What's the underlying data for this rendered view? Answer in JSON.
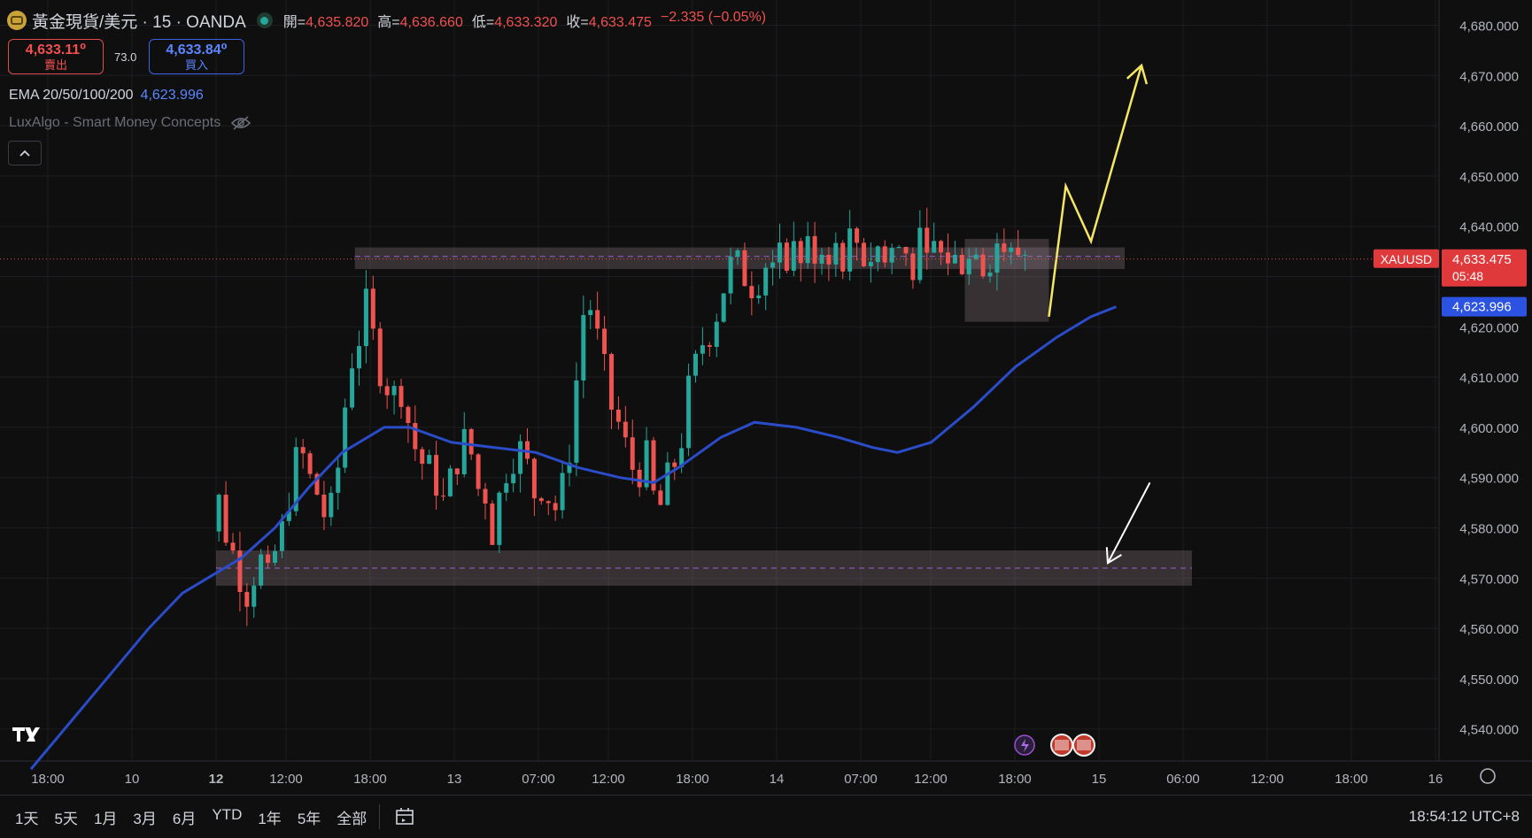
{
  "header": {
    "title": "黃金現貨/美元 · 15 · OANDA",
    "open_label": "開=",
    "open": "4,635.820",
    "high_label": "高=",
    "high": "4,636.660",
    "low_label": "低=",
    "low": "4,633.320",
    "close_label": "收=",
    "close": "4,633.475",
    "change": "−2.335 (−0.05%)"
  },
  "trade": {
    "sell_price": "4,633.11⁰",
    "sell_label": "賣出",
    "spread": "73.0",
    "buy_price": "4,633.84⁰",
    "buy_label": "買入"
  },
  "indicators": {
    "ema_label": "EMA 20/50/100/200",
    "ema_value": "4,623.996",
    "smc_label": "LuxAlgo - Smart Money Concepts"
  },
  "bottom": {
    "ranges": [
      "1天",
      "5天",
      "1月",
      "3月",
      "6月",
      "YTD",
      "1年",
      "5年",
      "全部"
    ],
    "clock": "18:54:12 UTC+8"
  },
  "colors": {
    "up": "#26a69a",
    "down": "#ef5350",
    "ema": "#2b4cc9",
    "bg": "#0f0f0f",
    "projection": "#f5e663",
    "arrow": "#ffffff"
  },
  "chart_data": {
    "type": "candlestick",
    "symbol": "XAUUSD",
    "timeframe": "15",
    "y_ticks": [
      "4,540.000",
      "4,550.000",
      "4,560.000",
      "4,570.000",
      "4,580.000",
      "4,590.000",
      "4,600.000",
      "4,610.000",
      "4,620.000",
      "4,630.000",
      "4,640.000",
      "4,650.000",
      "4,660.000",
      "4,670.000",
      "4,680.000"
    ],
    "x_ticks": [
      "18:00",
      "10",
      "12",
      "12:00",
      "18:00",
      "13",
      "07:00",
      "12:00",
      "18:00",
      "14",
      "07:00",
      "12:00",
      "18:00",
      "15",
      "06:00",
      "12:00",
      "18:00",
      "16"
    ],
    "ylim": [
      4532,
      4685
    ],
    "last_price": 4633.475,
    "last_price_label": "4,633.475",
    "countdown": "05:48",
    "ema_value": 4623.996,
    "ema_label": "4,623.996",
    "ema_path": [
      [
        -22,
        4532
      ],
      [
        -14,
        4548
      ],
      [
        -8,
        4560
      ],
      [
        -4,
        4567
      ],
      [
        0,
        4571
      ],
      [
        3,
        4574
      ],
      [
        7,
        4580
      ],
      [
        11,
        4588
      ],
      [
        15,
        4595
      ],
      [
        20,
        4600
      ],
      [
        23,
        4600
      ],
      [
        28,
        4597
      ],
      [
        33,
        4596
      ],
      [
        38,
        4595
      ],
      [
        43,
        4592
      ],
      [
        48,
        4590
      ],
      [
        52,
        4589
      ],
      [
        55,
        4592
      ],
      [
        60,
        4598
      ],
      [
        64,
        4601
      ],
      [
        69,
        4600
      ],
      [
        74,
        4598
      ],
      [
        78,
        4596
      ],
      [
        81,
        4595
      ],
      [
        85,
        4597
      ],
      [
        90,
        4604
      ],
      [
        95,
        4612
      ],
      [
        100,
        4618
      ],
      [
        104,
        4622
      ],
      [
        107,
        4624
      ]
    ],
    "candles_anchor": [
      [
        -3,
        4535
      ],
      [
        -2,
        4550
      ],
      [
        -1,
        4572
      ],
      [
        0,
        4588
      ],
      [
        1,
        4580
      ],
      [
        2,
        4575
      ],
      [
        3,
        4570
      ],
      [
        4,
        4566
      ],
      [
        5,
        4576
      ],
      [
        6,
        4568
      ],
      [
        7,
        4575
      ],
      [
        8,
        4580
      ],
      [
        9,
        4590
      ],
      [
        10,
        4596
      ],
      [
        11,
        4590
      ],
      [
        12,
        4587
      ],
      [
        13,
        4582
      ],
      [
        14,
        4584
      ],
      [
        15,
        4600
      ],
      [
        16,
        4613
      ],
      [
        17,
        4618
      ],
      [
        18,
        4625
      ],
      [
        19,
        4614
      ],
      [
        20,
        4610
      ],
      [
        21,
        4606
      ],
      [
        22,
        4608
      ],
      [
        23,
        4600
      ],
      [
        24,
        4594
      ],
      [
        25,
        4592
      ],
      [
        26,
        4590
      ],
      [
        27,
        4585
      ],
      [
        28,
        4590
      ],
      [
        29,
        4596
      ],
      [
        30,
        4598
      ],
      [
        31,
        4588
      ],
      [
        32,
        4587
      ],
      [
        33,
        4578
      ],
      [
        34,
        4590
      ],
      [
        35,
        4594
      ],
      [
        36,
        4596
      ],
      [
        37,
        4592
      ],
      [
        38,
        4586
      ],
      [
        39,
        4590
      ],
      [
        40,
        4583
      ],
      [
        41,
        4586
      ],
      [
        42,
        4596
      ],
      [
        43,
        4612
      ],
      [
        44,
        4628
      ],
      [
        45,
        4620
      ],
      [
        46,
        4612
      ],
      [
        47,
        4604
      ],
      [
        48,
        4600
      ],
      [
        49,
        4594
      ],
      [
        50,
        4590
      ],
      [
        51,
        4595
      ],
      [
        52,
        4586
      ],
      [
        53,
        4584
      ],
      [
        54,
        4592
      ],
      [
        55,
        4594
      ],
      [
        56,
        4606
      ],
      [
        57,
        4612
      ],
      [
        58,
        4618
      ],
      [
        59,
        4620
      ],
      [
        60,
        4626
      ],
      [
        61,
        4632
      ],
      [
        62,
        4632
      ],
      [
        63,
        4630
      ],
      [
        64,
        4628
      ],
      [
        65,
        4632
      ],
      [
        66,
        4635
      ]
    ],
    "zones": [
      {
        "name": "supply",
        "from": 4631.5,
        "to": 4635.8,
        "mid": 4634.0,
        "x_from": 16.5,
        "x_to": 108
      },
      {
        "name": "demand",
        "from": 4568.5,
        "to": 4575.5,
        "mid": 4572.0,
        "x_from": 0,
        "x_to": 116
      },
      {
        "name": "range",
        "from": 4621,
        "to": 4637.5,
        "x_from": 89,
        "x_to": 99
      }
    ],
    "projection": [
      [
        99,
        4622
      ],
      [
        101,
        4648
      ],
      [
        104,
        4637
      ],
      [
        110,
        4672
      ]
    ],
    "arrow": [
      [
        111,
        4589
      ],
      [
        106,
        4573
      ]
    ]
  }
}
